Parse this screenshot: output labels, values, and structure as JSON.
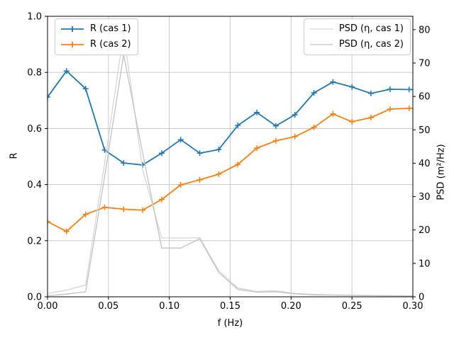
{
  "figure": {
    "background": "#ffffff",
    "spine_color": "#000000",
    "grid_color": "#c4c4c4",
    "legend_border_color": "#cccccc"
  },
  "chart_data": {
    "type": "line",
    "title": "",
    "xlabel": "f (Hz)",
    "ylabel_left": "R",
    "ylabel_right": "PSD (m²/Hz)",
    "xlim": [
      0.0,
      0.3
    ],
    "ylim_left": [
      0.0,
      1.0
    ],
    "ylim_right": [
      0,
      84
    ],
    "grid": true,
    "xticks": [
      0.0,
      0.05,
      0.1,
      0.15,
      0.2,
      0.25,
      0.3
    ],
    "xtick_labels": [
      "0.00",
      "0.05",
      "0.10",
      "0.15",
      "0.20",
      "0.25",
      "0.30"
    ],
    "yticks_left": [
      0.0,
      0.2,
      0.4,
      0.6,
      0.8,
      1.0
    ],
    "ytick_labels_left": [
      "0.0",
      "0.2",
      "0.4",
      "0.6",
      "0.8",
      "1.0"
    ],
    "yticks_right": [
      0,
      10,
      20,
      30,
      40,
      50,
      60,
      70,
      80
    ],
    "ytick_labels_right": [
      "0",
      "10",
      "20",
      "30",
      "40",
      "50",
      "60",
      "70",
      "80"
    ],
    "x": [
      0.0,
      0.0156,
      0.0313,
      0.0469,
      0.0625,
      0.0781,
      0.0938,
      0.1094,
      0.125,
      0.1406,
      0.1563,
      0.1719,
      0.1875,
      0.2031,
      0.2188,
      0.2344,
      0.25,
      0.2656,
      0.2813,
      0.2969,
      0.3
    ],
    "series": [
      {
        "name": "R (cas 1)",
        "axis": "left",
        "color": "#1f77b4",
        "marker": "plus",
        "line_width": 1.8,
        "values": [
          0.712,
          0.805,
          0.742,
          0.523,
          0.477,
          0.47,
          0.512,
          0.56,
          0.512,
          0.525,
          0.611,
          0.657,
          0.609,
          0.649,
          0.727,
          0.766,
          0.748,
          0.725,
          0.74,
          0.739,
          0.739
        ]
      },
      {
        "name": "R (cas 2)",
        "axis": "left",
        "color": "#ff7f0e",
        "marker": "plus",
        "line_width": 1.8,
        "values": [
          0.268,
          0.233,
          0.294,
          0.319,
          0.312,
          0.309,
          0.347,
          0.399,
          0.417,
          0.437,
          0.472,
          0.53,
          0.556,
          0.571,
          0.604,
          0.652,
          0.624,
          0.639,
          0.669,
          0.672,
          0.672
        ]
      },
      {
        "name": "PSD (η, cas 1)",
        "axis": "right",
        "color": "#d6d6d6",
        "marker": "none",
        "line_width": 1.3,
        "values": [
          1.0,
          2.0,
          3.5,
          40,
          79,
          38,
          17.6,
          17.6,
          17.7,
          7.8,
          2.6,
          1.6,
          1.8,
          1.0,
          0.7,
          0.55,
          0.5,
          0.4,
          0.35,
          0.3,
          0.3
        ]
      },
      {
        "name": "PSD (η, cas 2)",
        "axis": "right",
        "color": "#c2c2c2",
        "marker": "none",
        "line_width": 1.3,
        "values": [
          0.3,
          0.8,
          1.5,
          36,
          72.5,
          43,
          14.6,
          14.6,
          17.4,
          7.3,
          2.2,
          1.4,
          1.5,
          0.9,
          0.6,
          0.5,
          0.4,
          0.35,
          0.3,
          0.25,
          0.25
        ]
      }
    ],
    "legends": [
      {
        "position": "upper-left",
        "entries": [
          "R (cas 1)",
          "R (cas 2)"
        ]
      },
      {
        "position": "upper-right",
        "entries": [
          "PSD (η, cas 1)",
          "PSD (η, cas 2)"
        ]
      }
    ]
  }
}
